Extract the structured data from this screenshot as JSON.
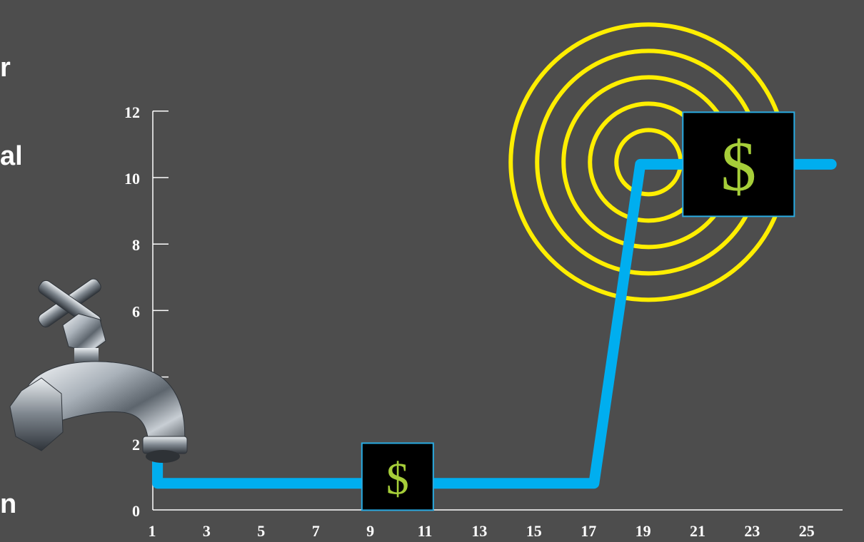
{
  "side_text": [
    "r",
    "al",
    "n"
  ],
  "chart_data": {
    "type": "line",
    "title": "",
    "xlabel": "",
    "ylabel": "",
    "x_ticks": [
      1,
      3,
      5,
      7,
      9,
      11,
      13,
      15,
      17,
      19,
      21,
      23,
      25
    ],
    "y_ticks": [
      0,
      2,
      4,
      6,
      8,
      10,
      12
    ],
    "xlim": [
      1,
      26
    ],
    "ylim": [
      0,
      12
    ],
    "grid": false,
    "series": [
      {
        "color": "#00aeef",
        "points": [
          {
            "x": 1.2,
            "y": 1.6
          },
          {
            "x": 1.2,
            "y": 0.8
          },
          {
            "x": 17.2,
            "y": 0.8
          },
          {
            "x": 18.9,
            "y": 10.4
          },
          {
            "x": 25.9,
            "y": 10.4
          }
        ]
      }
    ],
    "markers": [
      {
        "symbol": "$",
        "x": 10.0,
        "y": 1.0,
        "size": "small"
      },
      {
        "symbol": "$",
        "x": 22.5,
        "y": 10.4,
        "size": "large"
      }
    ],
    "target": {
      "x": 19.2,
      "y": 10.4,
      "rings": 5,
      "color": "#ffee00"
    },
    "colors": {
      "background": "#4d4d4d",
      "axis": "#ffffff",
      "line": "#00aeef",
      "ring": "#ffee00",
      "symbol": "#a6ce39",
      "box": "#000000",
      "box_border": "#29abe2"
    },
    "image": "faucet"
  }
}
